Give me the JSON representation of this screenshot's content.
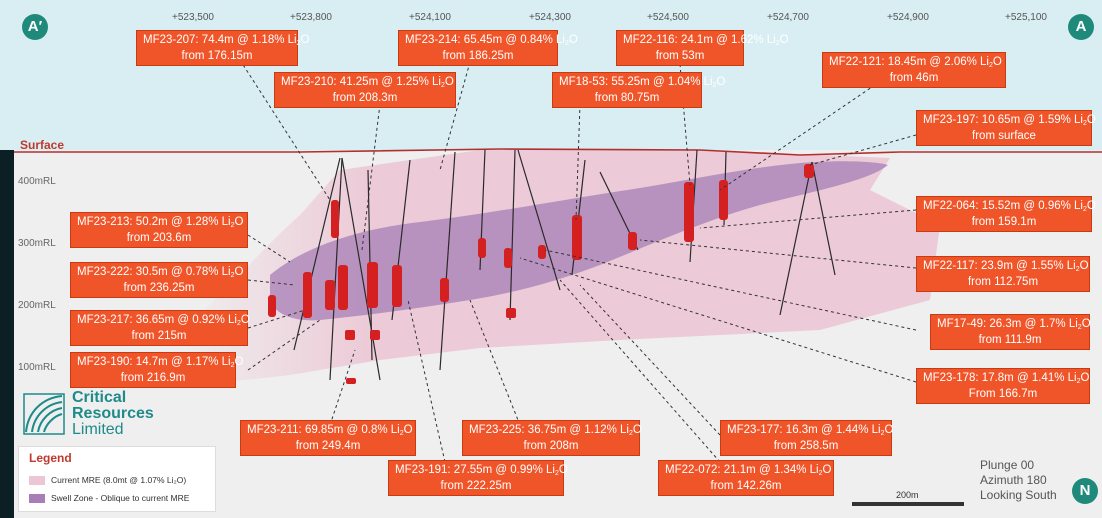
{
  "section": {
    "left_marker": "A′",
    "right_marker": "A",
    "north_marker": "N",
    "surface_label": "Surface",
    "easting_ticks": [
      "+523,500",
      "+523,800",
      "+524,100",
      "+524,300",
      "+524,500",
      "+524,700",
      "+524,900",
      "+525,100"
    ],
    "rl_ticks": [
      "400mRL",
      "300mRL",
      "200mRL",
      "100mRL"
    ]
  },
  "callouts": [
    {
      "id": "mf23-207",
      "hole": "MF23-207",
      "interval": "74.4m @ 1.18% Li",
      "from": "from 176.15m"
    },
    {
      "id": "mf23-210",
      "hole": "MF23-210",
      "interval": "41.25m @ 1.25% Li",
      "from": "from 208.3m"
    },
    {
      "id": "mf23-214",
      "hole": "MF23-214",
      "interval": "65.45m @ 0.84% Li",
      "from": "from 186.25m"
    },
    {
      "id": "mf22-116",
      "hole": "MF22-116",
      "interval": "24.1m @ 1.62% Li",
      "from": "from 53m"
    },
    {
      "id": "mf18-53",
      "hole": "MF18-53",
      "interval": "55.25m @ 1.04% Li",
      "from": "from 80.75m"
    },
    {
      "id": "mf22-121",
      "hole": "MF22-121",
      "interval": "18.45m @ 2.06% Li",
      "from": "from 46m"
    },
    {
      "id": "mf23-197",
      "hole": "MF23-197",
      "interval": "10.65m @ 1.59% Li",
      "from": "from surface"
    },
    {
      "id": "mf22-064",
      "hole": "MF22-064",
      "interval": "15.52m @ 0.96% Li",
      "from": "from 159.1m"
    },
    {
      "id": "mf22-117",
      "hole": "MF22-117",
      "interval": "23.9m @ 1.55% Li",
      "from": "from 112.75m"
    },
    {
      "id": "mf17-49",
      "hole": "MF17-49",
      "interval": "26.3m @ 1.7% Li",
      "from": "from 111.9m"
    },
    {
      "id": "mf23-178",
      "hole": "MF23-178",
      "interval": "17.8m @ 1.41% Li",
      "from": "From 166.7m"
    },
    {
      "id": "mf23-213",
      "hole": "MF23-213",
      "interval": "50.2m @ 1.28% Li",
      "from": "from 203.6m"
    },
    {
      "id": "mf23-222",
      "hole": "MF23-222",
      "interval": "30.5m @ 0.78% Li",
      "from": "from 236.25m"
    },
    {
      "id": "mf23-217",
      "hole": "MF23-217",
      "interval": "36.65m @ 0.92% Li",
      "from": "from 215m"
    },
    {
      "id": "mf23-190",
      "hole": "MF23-190",
      "interval": "14.7m @ 1.17% Li",
      "from": "from 216.9m"
    },
    {
      "id": "mf23-211",
      "hole": "MF23-211",
      "interval": "69.85m @ 0.8% Li",
      "from": "from 249.4m"
    },
    {
      "id": "mf23-225",
      "hole": "MF23-225",
      "interval": "36.75m @ 1.12% Li",
      "from": "from 208m"
    },
    {
      "id": "mf23-191",
      "hole": "MF23-191",
      "interval": "27.55m @ 0.99% Li",
      "from": "from 222.25m"
    },
    {
      "id": "mf23-177",
      "hole": "MF23-177",
      "interval": "16.3m @ 1.44% Li",
      "from": "from 258.5m"
    },
    {
      "id": "mf22-072",
      "hole": "MF22-072",
      "interval": "21.1m @ 1.34% Li",
      "from": "from 142.26m"
    }
  ],
  "oxide_suffix": "O",
  "oxide_sub": "2",
  "logo": {
    "line1": "Critical",
    "line2": "Resources",
    "line3": "Limited"
  },
  "legend": {
    "title": "Legend",
    "items": [
      {
        "label": "Current MRE (8.0mt @ 1.07% Li₂O)",
        "color": "#ecc6d4"
      },
      {
        "label": "Swell Zone - Oblique to current MRE",
        "color": "#a77fb6"
      }
    ]
  },
  "view": {
    "plunge": "Plunge 00",
    "azimuth": "Azimuth 180",
    "looking": "Looking South"
  },
  "scale_bar": {
    "label": "200m"
  },
  "colors": {
    "accent": "#f0552a",
    "teal": "#1f8a7c",
    "surface": "#b03030"
  }
}
